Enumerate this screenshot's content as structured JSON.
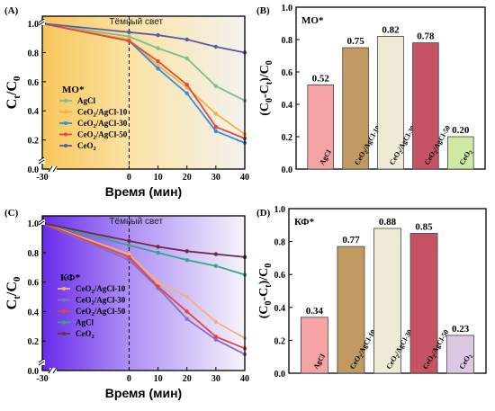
{
  "chart_data": [
    {
      "panel_label": "(A)",
      "type": "line",
      "ylabel_main": "C",
      "ylabel_sub_t": "t",
      "ylabel_sep": "/C",
      "ylabel_sub_0": "0",
      "xlabel": "Время (мин)",
      "dark_label": "Тёмный свет",
      "legend_title": "MO*",
      "x": [
        -30,
        0,
        10,
        20,
        30,
        40
      ],
      "xticks": [
        "-30",
        "0",
        "10",
        "20",
        "30",
        "40"
      ],
      "yticks": [
        "0.0",
        "0.2",
        "0.4",
        "0.6",
        "0.8",
        "1.0"
      ],
      "xlim": [
        -30,
        40
      ],
      "ylim": [
        0,
        1.05
      ],
      "legend_position": "center-left",
      "series": [
        {
          "name": "AgCl",
          "color": "#7cc08a",
          "values": [
            1.0,
            0.91,
            0.83,
            0.76,
            0.57,
            0.47
          ]
        },
        {
          "name": "CeO2/AgCl-10",
          "sub": [
            "CeO",
            "2",
            "/AgCl-10"
          ],
          "color": "#f3b13f",
          "values": [
            1.0,
            0.89,
            0.71,
            0.56,
            0.38,
            0.24
          ]
        },
        {
          "name": "CeO2/AgCl-30",
          "sub": [
            "CeO",
            "2",
            "/AgCl-30"
          ],
          "color": "#2a92e0",
          "values": [
            1.0,
            0.88,
            0.69,
            0.52,
            0.26,
            0.18
          ]
        },
        {
          "name": "CeO2/AgCl-50",
          "sub": [
            "CeO",
            "2",
            "/AgCl-50"
          ],
          "color": "#e8453c",
          "values": [
            1.0,
            0.88,
            0.74,
            0.58,
            0.29,
            0.21
          ]
        },
        {
          "name": "CeO2",
          "sub": [
            "CeO",
            "2",
            ""
          ],
          "color": "#5c5aa8",
          "values": [
            1.0,
            0.94,
            0.92,
            0.89,
            0.84,
            0.8
          ]
        }
      ]
    },
    {
      "panel_label": "(B)",
      "type": "bar",
      "legend_title": "MO*",
      "ylabel": "(C0-Ct)/C0",
      "categories": [
        "AgCl",
        "CeO2/AgCl-10",
        "CeO2/AgCl-30",
        "CeO2/AgCl-50",
        "CeO2"
      ],
      "values": [
        0.52,
        0.75,
        0.82,
        0.78,
        0.2
      ],
      "value_labels": [
        "0.52",
        "0.75",
        "0.82",
        "0.78",
        "0.20"
      ],
      "colors": [
        "#f6a3a6",
        "#c19a62",
        "#eeead5",
        "#c55364",
        "#cfe8a2"
      ],
      "yticks": [
        "0.0",
        "0.2",
        "0.4",
        "0.6",
        "0.8",
        "1.0"
      ],
      "ylim": [
        0,
        1.0
      ]
    },
    {
      "panel_label": "(C)",
      "type": "line",
      "ylabel_main": "C",
      "ylabel_sub_t": "t",
      "ylabel_sep": "/C",
      "ylabel_sub_0": "0",
      "xlabel": "Время (мин)",
      "dark_label": "Тёмный свет",
      "legend_title": "КФ*",
      "x": [
        -30,
        0,
        10,
        20,
        30,
        40
      ],
      "xticks": [
        "-30",
        "0",
        "10",
        "20",
        "30",
        "40"
      ],
      "yticks": [
        "0.0",
        "0.2",
        "0.4",
        "0.6",
        "0.8",
        "1.0"
      ],
      "xlim": [
        -30,
        40
      ],
      "ylim": [
        0,
        1.05
      ],
      "legend_position": "center-left",
      "series": [
        {
          "name": "CeO2/AgCl-10",
          "sub": [
            "CeO",
            "2",
            "/AgCl-10"
          ],
          "color": "#f3b27a",
          "values": [
            1.0,
            0.79,
            0.6,
            0.5,
            0.33,
            0.22
          ]
        },
        {
          "name": "CeO2/AgCl-30",
          "sub": [
            "CeO",
            "2",
            "/AgCl-30"
          ],
          "color": "#8b6bc9",
          "values": [
            1.0,
            0.75,
            0.56,
            0.35,
            0.21,
            0.11
          ]
        },
        {
          "name": "CeO2/AgCl-50",
          "sub": [
            "CeO",
            "2",
            "/AgCl-50"
          ],
          "color": "#e2443e",
          "values": [
            1.0,
            0.77,
            0.57,
            0.4,
            0.23,
            0.15
          ]
        },
        {
          "name": "AgCl",
          "color": "#36a58e",
          "values": [
            1.0,
            0.85,
            0.8,
            0.75,
            0.71,
            0.65
          ]
        },
        {
          "name": "CeO2",
          "sub": [
            "CeO",
            "2",
            ""
          ],
          "color": "#6e2a4a",
          "values": [
            1.0,
            0.88,
            0.84,
            0.81,
            0.79,
            0.77
          ]
        }
      ]
    },
    {
      "panel_label": "(D)",
      "type": "bar",
      "legend_title": "КФ*",
      "ylabel": "(C0-Ct)/C0",
      "categories": [
        "AgCl",
        "CeO2/AgCl-10",
        "CeO2/AgCl-30",
        "CeO2/AgCl-50",
        "CeO2"
      ],
      "values": [
        0.34,
        0.77,
        0.88,
        0.85,
        0.23
      ],
      "value_labels": [
        "0.34",
        "0.77",
        "0.88",
        "0.85",
        "0.23"
      ],
      "colors": [
        "#f6a3a6",
        "#c19a62",
        "#eeead5",
        "#c55364",
        "#dcc8e2"
      ],
      "yticks": [
        "0.0",
        "0.2",
        "0.4",
        "0.6",
        "0.8",
        "1.0"
      ],
      "ylim": [
        0,
        1.0
      ]
    }
  ]
}
